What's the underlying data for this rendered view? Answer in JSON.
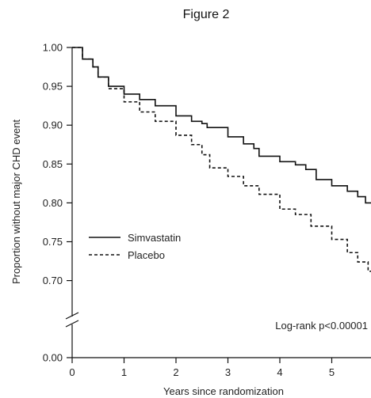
{
  "chart_data": {
    "type": "line",
    "title": "Figure 2",
    "xlabel": "Years since randomization",
    "ylabel": "Proportion without major CHD event",
    "xlim": [
      0,
      5.8
    ],
    "x_ticks": [
      0,
      1,
      2,
      3,
      4,
      5
    ],
    "y_ticks": [
      "1.00",
      "0.95",
      "0.90",
      "0.85",
      "0.80",
      "0.75",
      "0.70",
      "0.00"
    ],
    "y_axis_break": true,
    "legend_position": "center-left",
    "annotation": "Log-rank p<0.00001",
    "series": [
      {
        "name": "Simvastatin",
        "style": "solid",
        "color": "#111111",
        "points": [
          [
            0,
            1.0
          ],
          [
            0.2,
            0.985
          ],
          [
            0.4,
            0.975
          ],
          [
            0.5,
            0.962
          ],
          [
            0.7,
            0.95
          ],
          [
            1.0,
            0.94
          ],
          [
            1.3,
            0.933
          ],
          [
            1.6,
            0.925
          ],
          [
            2.0,
            0.912
          ],
          [
            2.3,
            0.905
          ],
          [
            2.5,
            0.902
          ],
          [
            2.6,
            0.897
          ],
          [
            3.0,
            0.885
          ],
          [
            3.3,
            0.876
          ],
          [
            3.5,
            0.87
          ],
          [
            3.6,
            0.86
          ],
          [
            4.0,
            0.853
          ],
          [
            4.3,
            0.849
          ],
          [
            4.5,
            0.843
          ],
          [
            4.7,
            0.83
          ],
          [
            5.0,
            0.822
          ],
          [
            5.3,
            0.815
          ],
          [
            5.5,
            0.808
          ],
          [
            5.65,
            0.8
          ],
          [
            5.8,
            0.799
          ]
        ]
      },
      {
        "name": "Placebo",
        "style": "dashed",
        "color": "#111111",
        "points": [
          [
            0,
            1.0
          ],
          [
            0.2,
            0.985
          ],
          [
            0.4,
            0.975
          ],
          [
            0.5,
            0.962
          ],
          [
            0.7,
            0.947
          ],
          [
            1.0,
            0.93
          ],
          [
            1.3,
            0.917
          ],
          [
            1.6,
            0.905
          ],
          [
            2.0,
            0.887
          ],
          [
            2.3,
            0.875
          ],
          [
            2.5,
            0.862
          ],
          [
            2.65,
            0.845
          ],
          [
            3.0,
            0.834
          ],
          [
            3.3,
            0.822
          ],
          [
            3.6,
            0.811
          ],
          [
            4.0,
            0.792
          ],
          [
            4.3,
            0.785
          ],
          [
            4.6,
            0.77
          ],
          [
            5.0,
            0.753
          ],
          [
            5.3,
            0.736
          ],
          [
            5.5,
            0.724
          ],
          [
            5.7,
            0.712
          ],
          [
            5.8,
            0.708
          ]
        ]
      }
    ]
  }
}
